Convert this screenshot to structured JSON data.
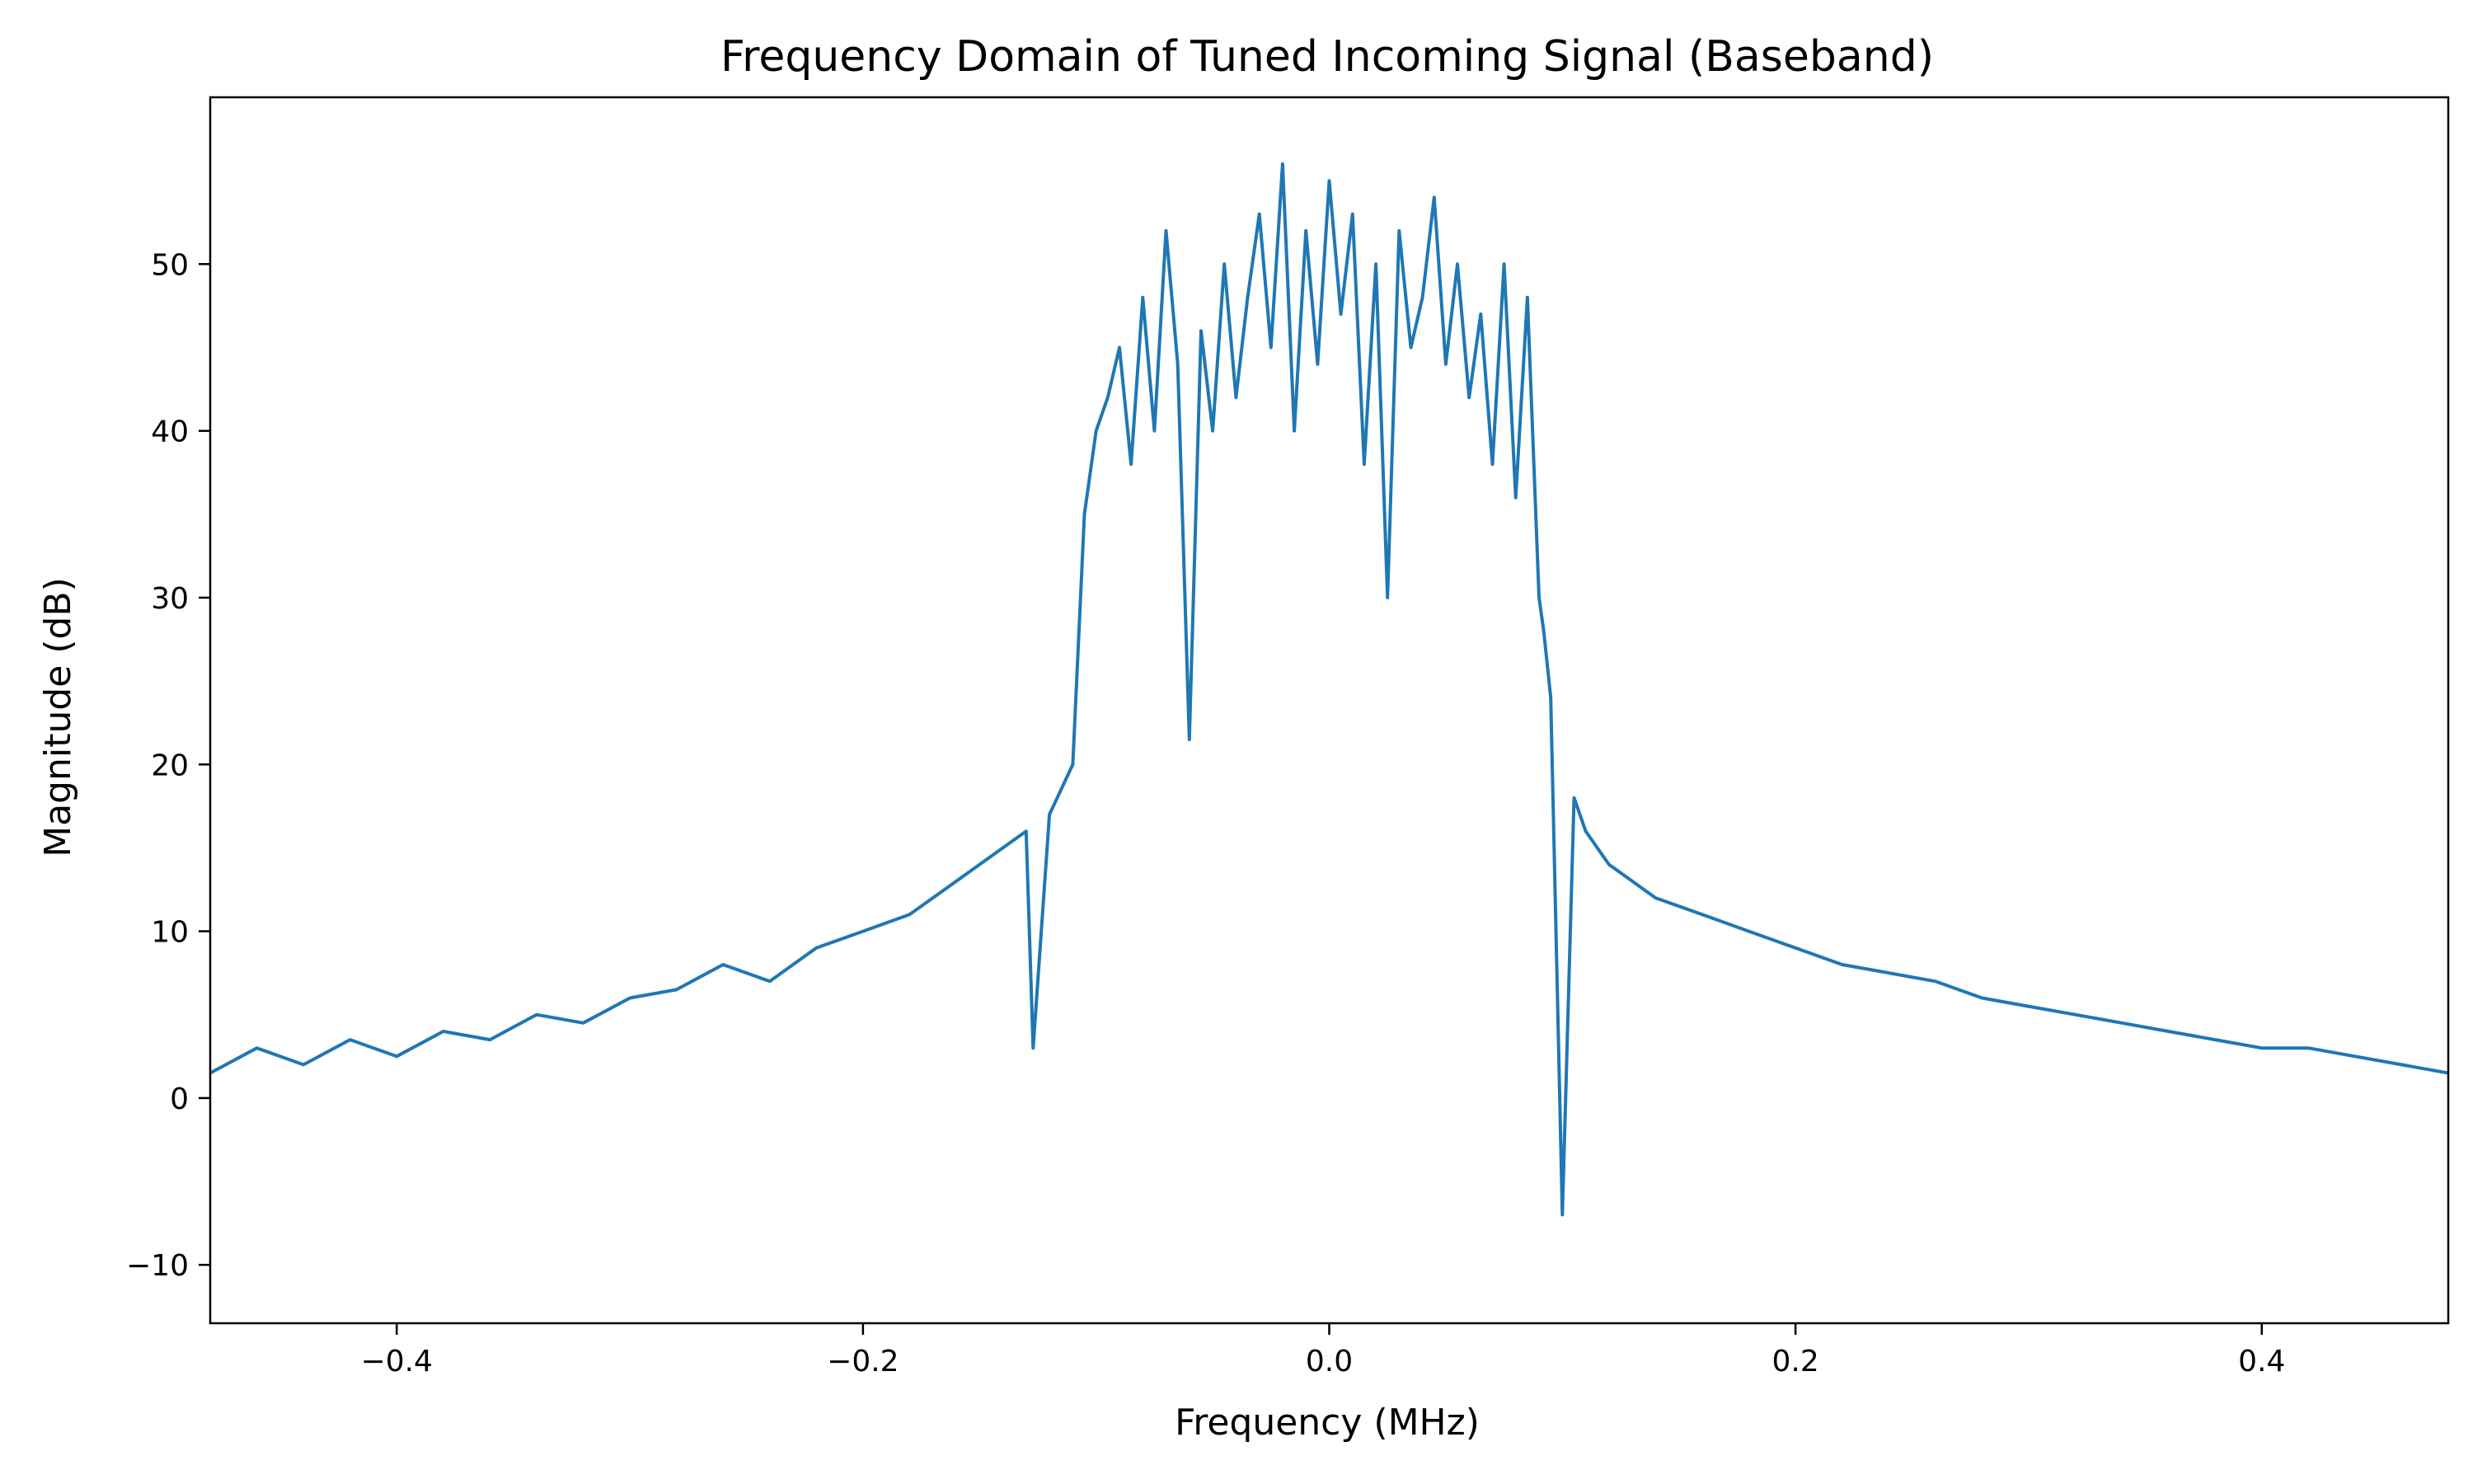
{
  "chart_data": {
    "type": "line",
    "title": "Frequency Domain of Tuned Incoming Signal (Baseband)",
    "xlabel": "Frequency (MHz)",
    "ylabel": "Magnitude (dB)",
    "xlim": [
      -0.48,
      0.48
    ],
    "ylim": [
      -13.5,
      60
    ],
    "x_ticks": [
      {
        "value": -0.4,
        "label": "−0.4"
      },
      {
        "value": -0.2,
        "label": "−0.2"
      },
      {
        "value": 0.0,
        "label": "0.0"
      },
      {
        "value": 0.2,
        "label": "0.2"
      },
      {
        "value": 0.4,
        "label": "0.4"
      }
    ],
    "y_ticks": [
      {
        "value": -10,
        "label": "−10"
      },
      {
        "value": 0,
        "label": "0"
      },
      {
        "value": 10,
        "label": "10"
      },
      {
        "value": 20,
        "label": "20"
      },
      {
        "value": 30,
        "label": "30"
      },
      {
        "value": 40,
        "label": "40"
      },
      {
        "value": 50,
        "label": "50"
      }
    ],
    "grid": false,
    "series_color": "#1f77b4",
    "series": [
      {
        "x": [
          -0.48,
          -0.46,
          -0.44,
          -0.42,
          -0.4,
          -0.38,
          -0.36,
          -0.34,
          -0.32,
          -0.3,
          -0.28,
          -0.26,
          -0.24,
          -0.22,
          -0.2,
          -0.18,
          -0.16,
          -0.15,
          -0.14,
          -0.13,
          -0.127,
          -0.12,
          -0.11,
          -0.105,
          -0.1,
          -0.095,
          -0.09,
          -0.085,
          -0.08,
          -0.075,
          -0.07,
          -0.065,
          -0.06,
          -0.055,
          -0.05,
          -0.045,
          -0.04,
          -0.035,
          -0.03,
          -0.025,
          -0.02,
          -0.015,
          -0.01,
          -0.005,
          0.0,
          0.005,
          0.01,
          0.015,
          0.02,
          0.025,
          0.03,
          0.035,
          0.04,
          0.045,
          0.05,
          0.055,
          0.06,
          0.065,
          0.07,
          0.075,
          0.08,
          0.085,
          0.09,
          0.092,
          0.095,
          0.1,
          0.105,
          0.11,
          0.12,
          0.13,
          0.14,
          0.16,
          0.18,
          0.2,
          0.22,
          0.24,
          0.26,
          0.28,
          0.3,
          0.32,
          0.34,
          0.36,
          0.38,
          0.4,
          0.42,
          0.44,
          0.46,
          0.48
        ],
        "y": [
          1.5,
          3,
          2,
          3.5,
          2.5,
          4,
          3.5,
          5,
          4.5,
          6,
          6.5,
          8,
          7,
          9,
          10,
          11,
          13,
          14,
          15,
          16,
          3,
          17,
          20,
          35,
          40,
          42,
          45,
          38,
          48,
          40,
          52,
          44,
          21.5,
          46,
          40,
          50,
          42,
          48,
          53,
          45,
          56,
          40,
          52,
          44,
          55,
          47,
          53,
          38,
          50,
          30,
          52,
          45,
          48,
          54,
          44,
          50,
          42,
          47,
          38,
          50,
          36,
          48,
          30,
          28,
          24,
          -7,
          18,
          16,
          14,
          13,
          12,
          11,
          10,
          9,
          8,
          7.5,
          7,
          6,
          5.5,
          5,
          4.5,
          4,
          3.5,
          3,
          3,
          2.5,
          2,
          1.5
        ]
      }
    ]
  }
}
